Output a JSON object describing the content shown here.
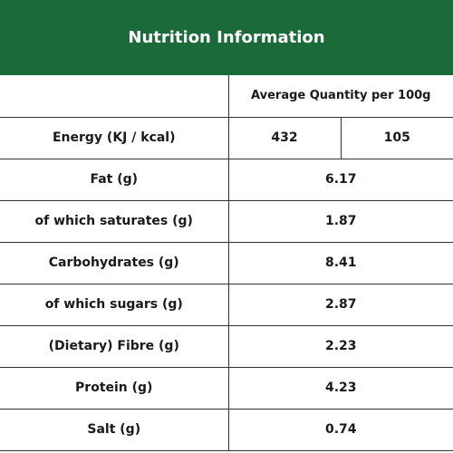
{
  "header": {
    "title": "Nutrition Information"
  },
  "table": {
    "column_header": "Average Quantity per 100g",
    "energy": {
      "label": "Energy (KJ / kcal)",
      "kj": "432",
      "kcal": "105"
    },
    "rows": [
      {
        "label": "Fat (g)",
        "value": "6.17"
      },
      {
        "label": "of which saturates (g)",
        "value": "1.87"
      },
      {
        "label": "Carbohydrates (g)",
        "value": "8.41"
      },
      {
        "label": "of which sugars (g)",
        "value": "2.87"
      },
      {
        "label": "(Dietary) Fibre (g)",
        "value": "2.23"
      },
      {
        "label": "Protein (g)",
        "value": "4.23"
      },
      {
        "label": "Salt (g)",
        "value": "0.74"
      }
    ]
  },
  "colors": {
    "header_background": "#1b6a39",
    "header_text": "#ffffff",
    "border": "#333333"
  }
}
